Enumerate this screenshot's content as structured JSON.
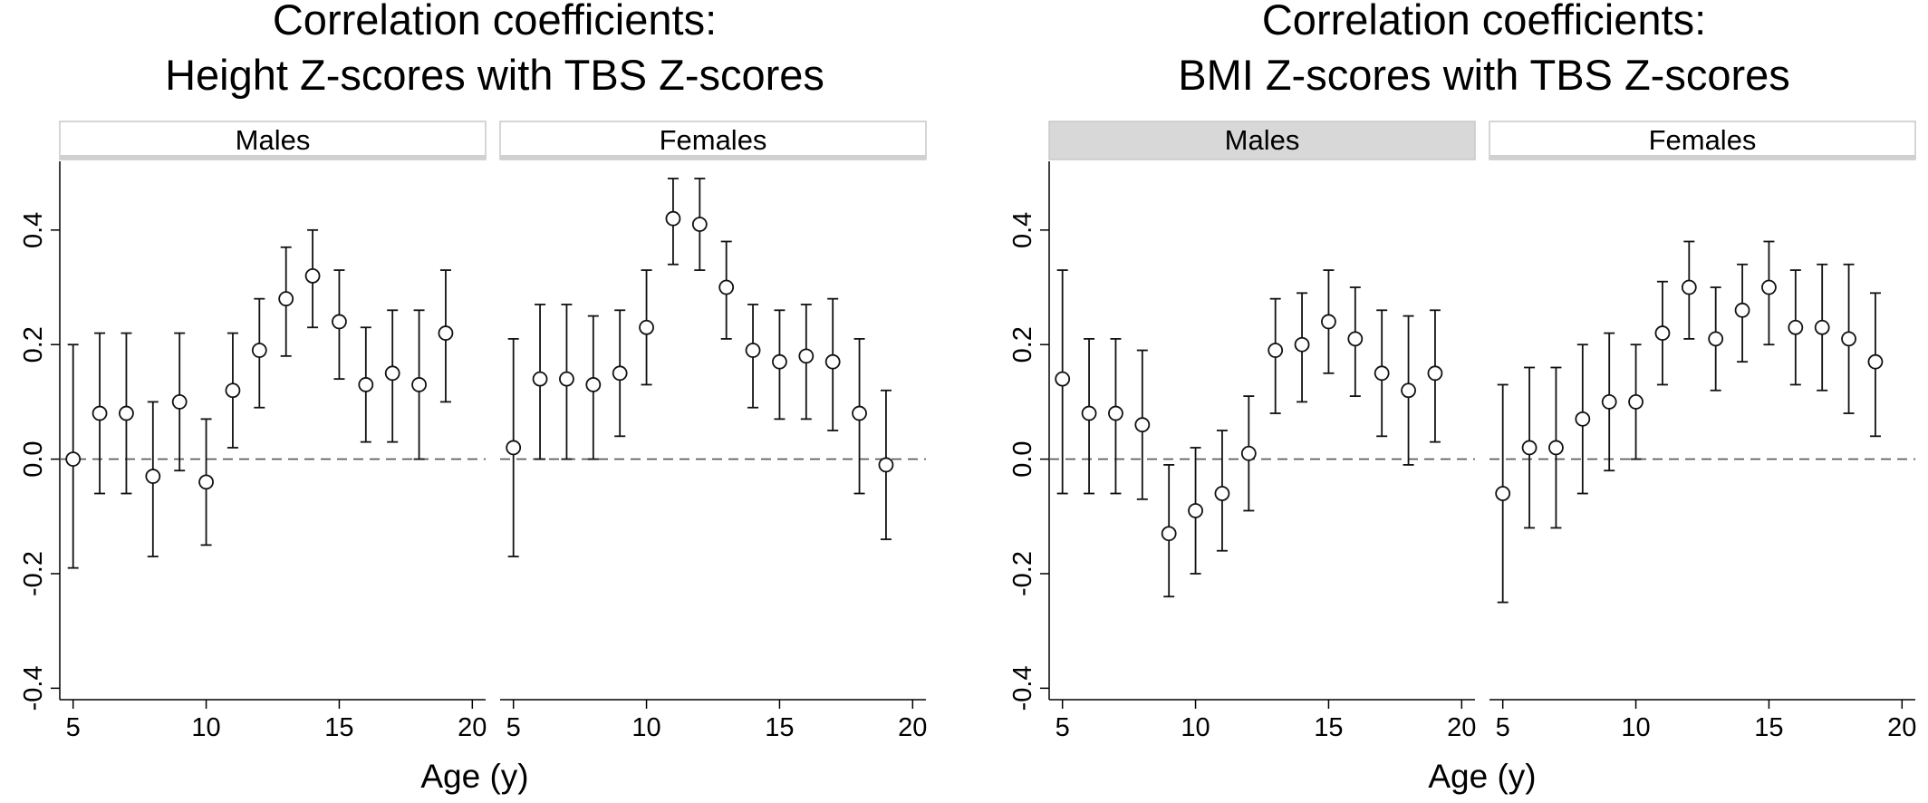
{
  "figure": {
    "xlabel": "Age (y)"
  },
  "chart_data": [
    {
      "type": "scatter",
      "title": "Correlation coefficients:\nHeight Z-scores with TBS Z-scores",
      "title_lines": [
        "Correlation coefficients:",
        "Height Z-scores with TBS Z-scores"
      ],
      "xlabel": "Age (y)",
      "ylabel": "",
      "xlim": [
        4.5,
        20.5
      ],
      "ylim": [
        -0.42,
        0.52
      ],
      "xticks": [
        5,
        10,
        15,
        20
      ],
      "yticks": [
        -0.4,
        -0.2,
        0.0,
        0.2,
        0.4
      ],
      "ytick_labels": [
        "-0.4",
        "-0.2",
        "0.0",
        "0.2",
        "0.4"
      ],
      "reference_line": 0,
      "grid": false,
      "panels": [
        {
          "label": "Males",
          "strip_highlight": false,
          "points": [
            {
              "x": 5,
              "y": 0.0,
              "lo": -0.19,
              "hi": 0.2
            },
            {
              "x": 6,
              "y": 0.08,
              "lo": -0.06,
              "hi": 0.22
            },
            {
              "x": 7,
              "y": 0.08,
              "lo": -0.06,
              "hi": 0.22
            },
            {
              "x": 8,
              "y": -0.03,
              "lo": -0.17,
              "hi": 0.1
            },
            {
              "x": 9,
              "y": 0.1,
              "lo": -0.02,
              "hi": 0.22
            },
            {
              "x": 10,
              "y": -0.04,
              "lo": -0.15,
              "hi": 0.07
            },
            {
              "x": 11,
              "y": 0.12,
              "lo": 0.02,
              "hi": 0.22
            },
            {
              "x": 12,
              "y": 0.19,
              "lo": 0.09,
              "hi": 0.28
            },
            {
              "x": 13,
              "y": 0.28,
              "lo": 0.18,
              "hi": 0.37
            },
            {
              "x": 14,
              "y": 0.32,
              "lo": 0.23,
              "hi": 0.4
            },
            {
              "x": 15,
              "y": 0.24,
              "lo": 0.14,
              "hi": 0.33
            },
            {
              "x": 16,
              "y": 0.13,
              "lo": 0.03,
              "hi": 0.23
            },
            {
              "x": 17,
              "y": 0.15,
              "lo": 0.03,
              "hi": 0.26
            },
            {
              "x": 18,
              "y": 0.13,
              "lo": 0.0,
              "hi": 0.26
            },
            {
              "x": 19,
              "y": 0.22,
              "lo": 0.1,
              "hi": 0.33
            }
          ]
        },
        {
          "label": "Females",
          "strip_highlight": false,
          "points": [
            {
              "x": 5,
              "y": 0.02,
              "lo": -0.17,
              "hi": 0.21
            },
            {
              "x": 6,
              "y": 0.14,
              "lo": 0.0,
              "hi": 0.27
            },
            {
              "x": 7,
              "y": 0.14,
              "lo": 0.0,
              "hi": 0.27
            },
            {
              "x": 8,
              "y": 0.13,
              "lo": 0.0,
              "hi": 0.25
            },
            {
              "x": 9,
              "y": 0.15,
              "lo": 0.04,
              "hi": 0.26
            },
            {
              "x": 10,
              "y": 0.23,
              "lo": 0.13,
              "hi": 0.33
            },
            {
              "x": 11,
              "y": 0.42,
              "lo": 0.34,
              "hi": 0.49
            },
            {
              "x": 12,
              "y": 0.41,
              "lo": 0.33,
              "hi": 0.49
            },
            {
              "x": 13,
              "y": 0.3,
              "lo": 0.21,
              "hi": 0.38
            },
            {
              "x": 14,
              "y": 0.19,
              "lo": 0.09,
              "hi": 0.27
            },
            {
              "x": 15,
              "y": 0.17,
              "lo": 0.07,
              "hi": 0.26
            },
            {
              "x": 16,
              "y": 0.18,
              "lo": 0.07,
              "hi": 0.27
            },
            {
              "x": 17,
              "y": 0.17,
              "lo": 0.05,
              "hi": 0.28
            },
            {
              "x": 18,
              "y": 0.08,
              "lo": -0.06,
              "hi": 0.21
            },
            {
              "x": 19,
              "y": -0.01,
              "lo": -0.14,
              "hi": 0.12
            }
          ]
        }
      ]
    },
    {
      "type": "scatter",
      "title": "Correlation coefficients:\nBMI Z-scores with TBS Z-scores",
      "title_lines": [
        "Correlation coefficients:",
        "BMI Z-scores with TBS Z-scores"
      ],
      "xlabel": "Age (y)",
      "ylabel": "",
      "xlim": [
        4.5,
        20.5
      ],
      "ylim": [
        -0.42,
        0.52
      ],
      "xticks": [
        5,
        10,
        15,
        20
      ],
      "yticks": [
        -0.4,
        -0.2,
        0.0,
        0.2,
        0.4
      ],
      "ytick_labels": [
        "-0.4",
        "-0.2",
        "0.0",
        "0.2",
        "0.4"
      ],
      "reference_line": 0,
      "grid": false,
      "panels": [
        {
          "label": "Males",
          "strip_highlight": true,
          "points": [
            {
              "x": 5,
              "y": 0.14,
              "lo": -0.06,
              "hi": 0.33
            },
            {
              "x": 6,
              "y": 0.08,
              "lo": -0.06,
              "hi": 0.21
            },
            {
              "x": 7,
              "y": 0.08,
              "lo": -0.06,
              "hi": 0.21
            },
            {
              "x": 8,
              "y": 0.06,
              "lo": -0.07,
              "hi": 0.19
            },
            {
              "x": 9,
              "y": -0.13,
              "lo": -0.24,
              "hi": -0.01
            },
            {
              "x": 10,
              "y": -0.09,
              "lo": -0.2,
              "hi": 0.02
            },
            {
              "x": 11,
              "y": -0.06,
              "lo": -0.16,
              "hi": 0.05
            },
            {
              "x": 12,
              "y": 0.01,
              "lo": -0.09,
              "hi": 0.11
            },
            {
              "x": 13,
              "y": 0.19,
              "lo": 0.08,
              "hi": 0.28
            },
            {
              "x": 14,
              "y": 0.2,
              "lo": 0.1,
              "hi": 0.29
            },
            {
              "x": 15,
              "y": 0.24,
              "lo": 0.15,
              "hi": 0.33
            },
            {
              "x": 16,
              "y": 0.21,
              "lo": 0.11,
              "hi": 0.3
            },
            {
              "x": 17,
              "y": 0.15,
              "lo": 0.04,
              "hi": 0.26
            },
            {
              "x": 18,
              "y": 0.12,
              "lo": -0.01,
              "hi": 0.25
            },
            {
              "x": 19,
              "y": 0.15,
              "lo": 0.03,
              "hi": 0.26
            }
          ]
        },
        {
          "label": "Females",
          "strip_highlight": false,
          "points": [
            {
              "x": 5,
              "y": -0.06,
              "lo": -0.25,
              "hi": 0.13
            },
            {
              "x": 6,
              "y": 0.02,
              "lo": -0.12,
              "hi": 0.16
            },
            {
              "x": 7,
              "y": 0.02,
              "lo": -0.12,
              "hi": 0.16
            },
            {
              "x": 8,
              "y": 0.07,
              "lo": -0.06,
              "hi": 0.2
            },
            {
              "x": 9,
              "y": 0.1,
              "lo": -0.02,
              "hi": 0.22
            },
            {
              "x": 10,
              "y": 0.1,
              "lo": 0.0,
              "hi": 0.2
            },
            {
              "x": 11,
              "y": 0.22,
              "lo": 0.13,
              "hi": 0.31
            },
            {
              "x": 12,
              "y": 0.3,
              "lo": 0.21,
              "hi": 0.38
            },
            {
              "x": 13,
              "y": 0.21,
              "lo": 0.12,
              "hi": 0.3
            },
            {
              "x": 14,
              "y": 0.26,
              "lo": 0.17,
              "hi": 0.34
            },
            {
              "x": 15,
              "y": 0.3,
              "lo": 0.2,
              "hi": 0.38
            },
            {
              "x": 16,
              "y": 0.23,
              "lo": 0.13,
              "hi": 0.33
            },
            {
              "x": 17,
              "y": 0.23,
              "lo": 0.12,
              "hi": 0.34
            },
            {
              "x": 18,
              "y": 0.21,
              "lo": 0.08,
              "hi": 0.34
            },
            {
              "x": 19,
              "y": 0.17,
              "lo": 0.04,
              "hi": 0.29
            }
          ]
        }
      ]
    }
  ]
}
